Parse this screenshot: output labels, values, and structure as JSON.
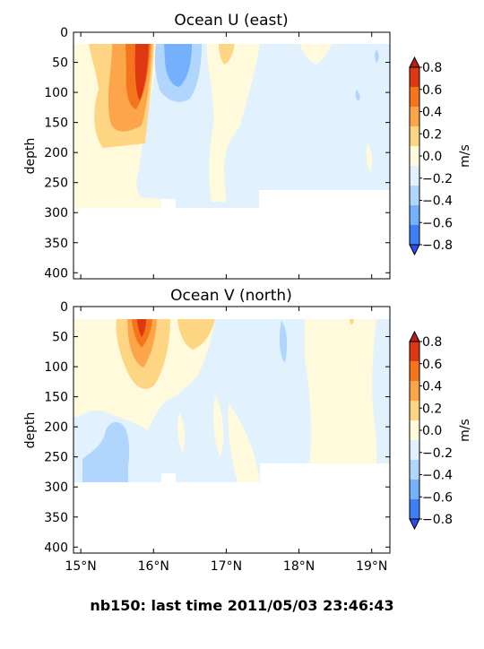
{
  "footer_title": "nb150: last time 2011/05/03 23:46:43",
  "chart_data": [
    {
      "type": "heatmap",
      "title": "Ocean U (east)",
      "xlabel": "",
      "ylabel": "depth",
      "x_range": [
        14.9,
        19.25
      ],
      "y_range": [
        410,
        0
      ],
      "y_inverted": true,
      "yticks": [
        0,
        50,
        100,
        150,
        200,
        250,
        300,
        350,
        400
      ],
      "ytick_labels": [
        "0",
        "50",
        "100",
        "150",
        "200",
        "250",
        "300",
        "350",
        "400"
      ],
      "xticks": [
        15,
        16,
        17,
        18,
        19
      ],
      "xtick_labels": [],
      "colorbar": {
        "label": "m/s",
        "ticks": [
          0.8,
          0.6,
          0.4,
          0.2,
          0.0,
          -0.2,
          -0.4,
          -0.6,
          -0.8
        ],
        "tick_labels": [
          "0.8",
          "0.6",
          "0.4",
          "0.2",
          "0.0",
          "−0.2",
          "−0.4",
          "−0.6",
          "−0.8"
        ],
        "levels": [
          -0.8,
          -0.6,
          -0.4,
          -0.2,
          0.0,
          0.2,
          0.4,
          0.6,
          0.8
        ],
        "colors": [
          "#2d4bf5",
          "#3d7ff7",
          "#74b0fb",
          "#b0d6fd",
          "#e1f1fe",
          "#fffadb",
          "#fed582",
          "#fca54b",
          "#f5751d",
          "#de3813",
          "#bb1c1c"
        ],
        "extend": "both"
      },
      "data_extent": {
        "depth_top": 20,
        "depth_bottom": 292,
        "lat_min": 14.9,
        "lat_max": 19.25
      },
      "field_features": [
        {
          "lat_range": [
            15.75,
            15.95
          ],
          "depth_range": [
            20,
            120
          ],
          "value": 0.9
        },
        {
          "lat_range": [
            15.6,
            16.0
          ],
          "depth_range": [
            20,
            150
          ],
          "value": 0.5
        },
        {
          "lat_range": [
            15.2,
            16.05
          ],
          "depth_range": [
            20,
            180
          ],
          "value": 0.3
        },
        {
          "lat_range": [
            16.2,
            16.55
          ],
          "depth_range": [
            20,
            90
          ],
          "value": -0.45
        },
        {
          "lat_range": [
            16.0,
            16.75
          ],
          "depth_range": [
            20,
            120
          ],
          "value": -0.3
        },
        {
          "lat_range": [
            16.8,
            17.55
          ],
          "depth_range": [
            20,
            230
          ],
          "value": 0.1
        }
      ]
    },
    {
      "type": "heatmap",
      "title": "Ocean V (north)",
      "xlabel": "",
      "ylabel": "depth",
      "x_range": [
        14.9,
        19.25
      ],
      "y_range": [
        410,
        0
      ],
      "y_inverted": true,
      "yticks": [
        0,
        50,
        100,
        150,
        200,
        250,
        300,
        350,
        400
      ],
      "ytick_labels": [
        "0",
        "50",
        "100",
        "150",
        "200",
        "250",
        "300",
        "350",
        "400"
      ],
      "xticks": [
        15,
        16,
        17,
        18,
        19
      ],
      "xtick_labels": [
        "15°N",
        "16°N",
        "17°N",
        "18°N",
        "19°N"
      ],
      "colorbar": {
        "label": "m/s",
        "ticks": [
          0.8,
          0.6,
          0.4,
          0.2,
          0.0,
          -0.2,
          -0.4,
          -0.6,
          -0.8
        ],
        "tick_labels": [
          "0.8",
          "0.6",
          "0.4",
          "0.2",
          "0.0",
          "−0.2",
          "−0.4",
          "−0.6",
          "−0.8"
        ],
        "levels": [
          -0.8,
          -0.6,
          -0.4,
          -0.2,
          0.0,
          0.2,
          0.4,
          0.6,
          0.8
        ],
        "colors": [
          "#2d4bf5",
          "#3d7ff7",
          "#74b0fb",
          "#b0d6fd",
          "#e1f1fe",
          "#fffadb",
          "#fed582",
          "#fca54b",
          "#f5751d",
          "#de3813",
          "#bb1c1c"
        ],
        "extend": "both"
      },
      "data_extent": {
        "depth_top": 20,
        "depth_bottom": 292,
        "lat_min": 14.9,
        "lat_max": 19.25
      },
      "field_features": [
        {
          "lat_range": [
            15.8,
            15.95
          ],
          "depth_range": [
            20,
            55
          ],
          "value": 0.7
        },
        {
          "lat_range": [
            15.7,
            16.0
          ],
          "depth_range": [
            20,
            90
          ],
          "value": 0.5
        },
        {
          "lat_range": [
            15.5,
            16.1
          ],
          "depth_range": [
            20,
            135
          ],
          "value": 0.3
        },
        {
          "lat_range": [
            15.4,
            15.95
          ],
          "depth_range": [
            195,
            290
          ],
          "value": -0.3
        },
        {
          "lat_range": [
            17.7,
            17.85
          ],
          "depth_range": [
            20,
            90
          ],
          "value": -0.3
        },
        {
          "lat_range": [
            18.1,
            19.0
          ],
          "depth_range": [
            20,
            260
          ],
          "value": 0.1
        }
      ]
    }
  ]
}
